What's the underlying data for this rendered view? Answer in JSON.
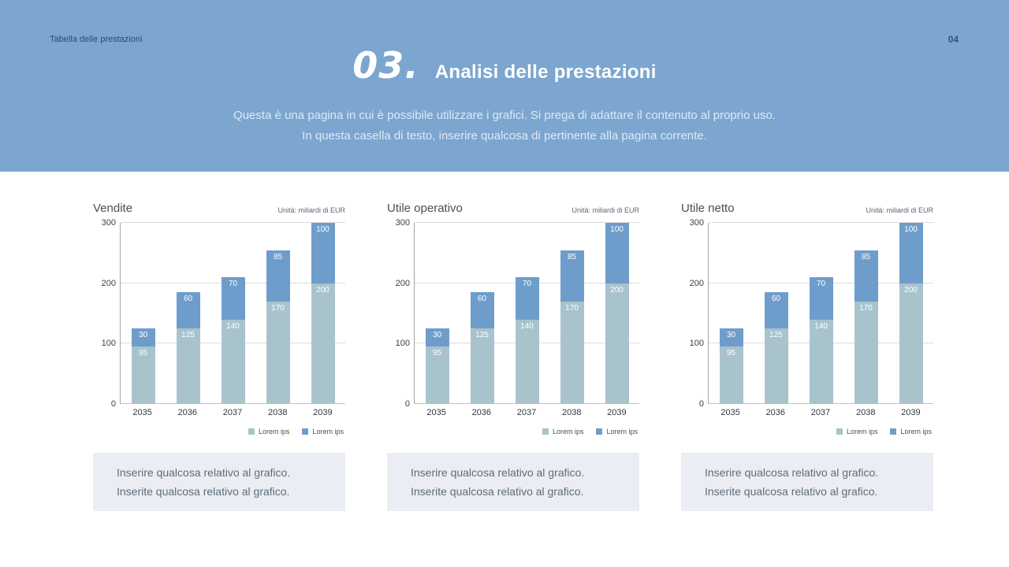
{
  "header": {
    "breadcrumb": "Tabella delle prestazioni",
    "page_number": "04",
    "section_number": "03.",
    "title": "Analisi delle prestazioni",
    "subtitle_line1": "Questa è una pagina in cui è possibile utilizzare i grafici. Si prega di adattare il contenuto al proprio uso.",
    "subtitle_line2": "In questa casella di testo, inserire qualcosa di pertinente alla pagina corrente."
  },
  "colors": {
    "header_bg": "#7CA6CF",
    "bar_bottom": "#A9C3CD",
    "bar_top": "#6F9DCB",
    "note_bg": "#EAEEF4"
  },
  "chart_data": [
    {
      "type": "bar",
      "stacked": true,
      "title": "Vendite",
      "unit_label": "Unità: miliardi di EUR",
      "categories": [
        "2035",
        "2036",
        "2037",
        "2038",
        "2039"
      ],
      "series": [
        {
          "name": "Lorem ips",
          "color": "#A9C3CD",
          "values": [
            95,
            125,
            140,
            170,
            200
          ]
        },
        {
          "name": "Lorem ips",
          "color": "#6F9DCB",
          "values": [
            30,
            60,
            70,
            85,
            100
          ]
        }
      ],
      "ylim": [
        0,
        300
      ],
      "yticks": [
        0,
        100,
        200,
        300
      ],
      "legend_position": "bottom-right",
      "grid": true,
      "note_line1": "Inserire qualcosa relativo al grafico.",
      "note_line2": "Inserite qualcosa relativo al grafico."
    },
    {
      "type": "bar",
      "stacked": true,
      "title": "Utile operativo",
      "unit_label": "Unità: miliardi di EUR",
      "categories": [
        "2035",
        "2036",
        "2037",
        "2038",
        "2039"
      ],
      "series": [
        {
          "name": "Lorem ips",
          "color": "#A9C3CD",
          "values": [
            95,
            125,
            140,
            170,
            200
          ]
        },
        {
          "name": "Lorem ips",
          "color": "#6F9DCB",
          "values": [
            30,
            60,
            70,
            85,
            100
          ]
        }
      ],
      "ylim": [
        0,
        300
      ],
      "yticks": [
        0,
        100,
        200,
        300
      ],
      "legend_position": "bottom-right",
      "grid": true,
      "note_line1": "Inserire qualcosa relativo al grafico.",
      "note_line2": "Inserite qualcosa relativo al grafico."
    },
    {
      "type": "bar",
      "stacked": true,
      "title": "Utile netto",
      "unit_label": "Unità: miliardi di EUR",
      "categories": [
        "2035",
        "2036",
        "2037",
        "2038",
        "2039"
      ],
      "series": [
        {
          "name": "Lorem ips",
          "color": "#A9C3CD",
          "values": [
            95,
            125,
            140,
            170,
            200
          ]
        },
        {
          "name": "Lorem ips",
          "color": "#6F9DCB",
          "values": [
            30,
            60,
            70,
            85,
            100
          ]
        }
      ],
      "ylim": [
        0,
        300
      ],
      "yticks": [
        0,
        100,
        200,
        300
      ],
      "legend_position": "bottom-right",
      "grid": true,
      "note_line1": "Inserire qualcosa relativo al grafico.",
      "note_line2": "Inserite qualcosa relativo al grafico."
    }
  ]
}
